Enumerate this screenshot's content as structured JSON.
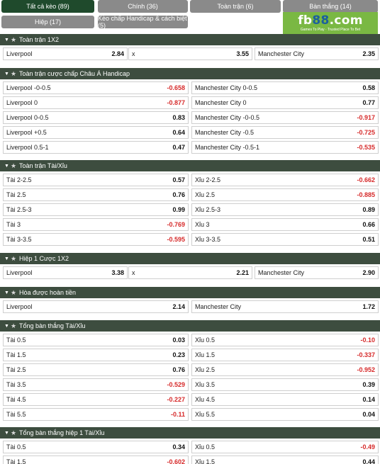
{
  "tabs": [
    {
      "label": "Tất cả kèo (89)",
      "active": true
    },
    {
      "label": "Chính (36)",
      "active": false
    },
    {
      "label": "Toàn trận (6)",
      "active": false
    },
    {
      "label": "Bàn thắng (14)",
      "active": false
    },
    {
      "label": "Hiệp (17)",
      "active": false
    },
    {
      "label": "Kèo chấp Handicap & cách biệt (5)",
      "active": false
    }
  ],
  "logo": {
    "prefix": "fb",
    "highlight": "88",
    "suffix": ".com",
    "tagline": "Games To Play · Trusted Place To Bet"
  },
  "sections": [
    {
      "title": "Toàn trận 1X2",
      "layout": "three",
      "rows": [
        [
          {
            "label": "Liverpool",
            "value": "2.84"
          },
          {
            "label": "x",
            "value": "3.55"
          },
          {
            "label": "Manchester City",
            "value": "2.35"
          }
        ]
      ]
    },
    {
      "title": "Toàn trận cược chấp Châu Á Handicap",
      "layout": "two",
      "rows": [
        [
          {
            "label": "Liverpool -0-0.5",
            "value": "-0.658"
          },
          {
            "label": "Manchester City 0-0.5",
            "value": "0.58"
          }
        ],
        [
          {
            "label": "Liverpool 0",
            "value": "-0.877"
          },
          {
            "label": "Manchester City 0",
            "value": "0.77"
          }
        ],
        [
          {
            "label": "Liverpool 0-0.5",
            "value": "0.83"
          },
          {
            "label": "Manchester City -0-0.5",
            "value": "-0.917"
          }
        ],
        [
          {
            "label": "Liverpool +0.5",
            "value": "0.64"
          },
          {
            "label": "Manchester City -0.5",
            "value": "-0.725"
          }
        ],
        [
          {
            "label": "Liverpool 0.5-1",
            "value": "0.47"
          },
          {
            "label": "Manchester City -0.5-1",
            "value": "-0.535"
          }
        ]
      ]
    },
    {
      "title": "Toàn trận Tài/Xỉu",
      "layout": "two",
      "rows": [
        [
          {
            "label": "Tài 2-2.5",
            "value": "0.57"
          },
          {
            "label": "Xỉu 2-2.5",
            "value": "-0.662"
          }
        ],
        [
          {
            "label": "Tài 2.5",
            "value": "0.76"
          },
          {
            "label": "Xỉu 2.5",
            "value": "-0.885"
          }
        ],
        [
          {
            "label": "Tài 2.5-3",
            "value": "0.99"
          },
          {
            "label": "Xỉu 2.5-3",
            "value": "0.89"
          }
        ],
        [
          {
            "label": "Tài 3",
            "value": "-0.769"
          },
          {
            "label": "Xỉu 3",
            "value": "0.66"
          }
        ],
        [
          {
            "label": "Tài 3-3.5",
            "value": "-0.595"
          },
          {
            "label": "Xỉu 3-3.5",
            "value": "0.51"
          }
        ]
      ]
    },
    {
      "title": "Hiệp 1 Cược 1X2",
      "layout": "three",
      "rows": [
        [
          {
            "label": "Liverpool",
            "value": "3.38"
          },
          {
            "label": "x",
            "value": "2.21"
          },
          {
            "label": "Manchester City",
            "value": "2.90"
          }
        ]
      ]
    },
    {
      "title": "Hòa được hoàn tiền",
      "layout": "two",
      "rows": [
        [
          {
            "label": "Liverpool",
            "value": "2.14"
          },
          {
            "label": "Manchester City",
            "value": "1.72"
          }
        ]
      ]
    },
    {
      "title": "Tổng bàn thắng Tài/Xỉu",
      "layout": "two",
      "rows": [
        [
          {
            "label": "Tài 0.5",
            "value": "0.03"
          },
          {
            "label": "Xỉu 0.5",
            "value": "-0.10"
          }
        ],
        [
          {
            "label": "Tài 1.5",
            "value": "0.23"
          },
          {
            "label": "Xỉu 1.5",
            "value": "-0.337"
          }
        ],
        [
          {
            "label": "Tài 2.5",
            "value": "0.76"
          },
          {
            "label": "Xỉu 2.5",
            "value": "-0.952"
          }
        ],
        [
          {
            "label": "Tài 3.5",
            "value": "-0.529"
          },
          {
            "label": "Xỉu 3.5",
            "value": "0.39"
          }
        ],
        [
          {
            "label": "Tài 4.5",
            "value": "-0.227"
          },
          {
            "label": "Xỉu 4.5",
            "value": "0.14"
          }
        ],
        [
          {
            "label": "Tài 5.5",
            "value": "-0.11"
          },
          {
            "label": "Xỉu 5.5",
            "value": "0.04"
          }
        ]
      ]
    },
    {
      "title": "Tổng bàn thắng hiệp 1 Tài/Xỉu",
      "layout": "two",
      "rows": [
        [
          {
            "label": "Tài 0.5",
            "value": "0.34"
          },
          {
            "label": "Xỉu 0.5",
            "value": "-0.49"
          }
        ],
        [
          {
            "label": "Tài 1.5",
            "value": "-0.602"
          },
          {
            "label": "Xỉu 1.5",
            "value": "0.44"
          }
        ]
      ]
    }
  ],
  "colors": {
    "header_bg": "#3d4d3f",
    "active_tab": "#1f4a2c",
    "tab": "#8a8a8a",
    "negative": "#d62a2a",
    "logo_bg": "#7ab843"
  }
}
